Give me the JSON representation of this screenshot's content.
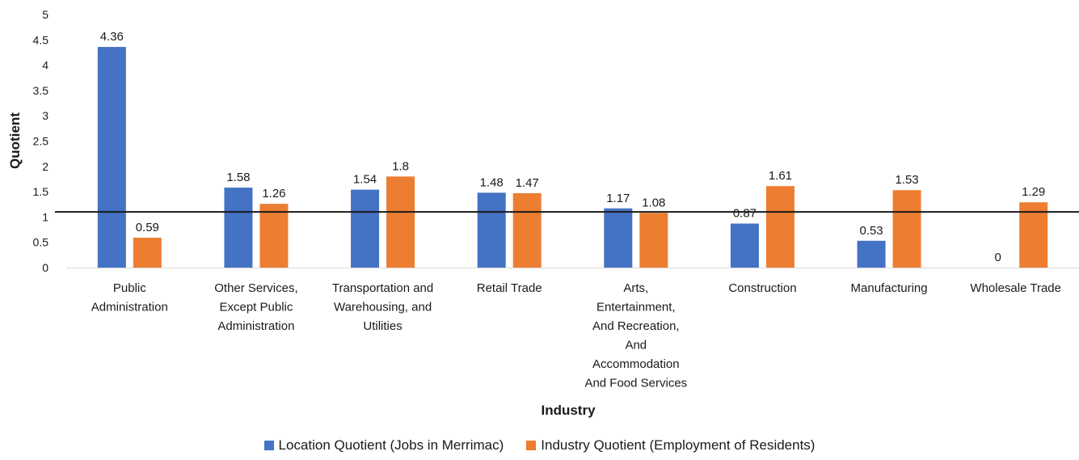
{
  "chart_data": {
    "type": "bar",
    "title": "",
    "xlabel": "Industry",
    "ylabel": "Quotient",
    "ylim": [
      0,
      5
    ],
    "yticks": [
      0,
      0.5,
      1,
      1.5,
      2,
      2.5,
      3,
      3.5,
      4,
      4.5,
      5
    ],
    "grid": false,
    "reference_line": 1.1,
    "legend_position": "bottom",
    "categories": [
      [
        "Public",
        "Administration"
      ],
      [
        "Other Services,",
        "Except Public",
        "Administration"
      ],
      [
        "Transportation and",
        "Warehousing, and",
        "Utilities"
      ],
      [
        "Retail Trade"
      ],
      [
        "Arts,",
        "Entertainment,",
        "And Recreation,",
        "And",
        "Accommodation",
        "And Food Services"
      ],
      [
        "Construction"
      ],
      [
        "Manufacturing"
      ],
      [
        "Wholesale Trade"
      ]
    ],
    "series": [
      {
        "name": "Location Quotient (Jobs in Merrimac)",
        "color": "#4472C4",
        "values": [
          4.36,
          1.58,
          1.54,
          1.48,
          1.17,
          0.87,
          0.53,
          0
        ]
      },
      {
        "name": "Industry Quotient (Employment of Residents)",
        "color": "#ED7D31",
        "values": [
          0.59,
          1.26,
          1.8,
          1.47,
          1.08,
          1.61,
          1.53,
          1.29
        ]
      }
    ]
  }
}
